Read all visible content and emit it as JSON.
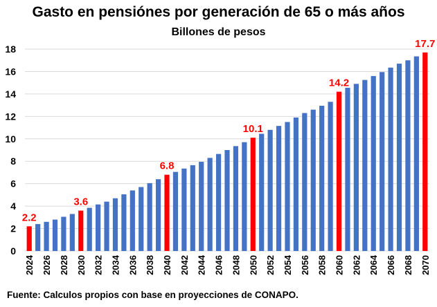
{
  "chart_data": {
    "type": "bar",
    "title": "Gasto en pensiónes por generación de 65 o más años",
    "subtitle": "Billones de pesos",
    "ylim": [
      0,
      18
    ],
    "yticks": [
      0,
      2,
      4,
      6,
      8,
      10,
      12,
      14,
      16,
      18
    ],
    "grid": true,
    "categories": [
      "2024",
      "2025",
      "2026",
      "2027",
      "2028",
      "2029",
      "2030",
      "2031",
      "2032",
      "2033",
      "2034",
      "2035",
      "2036",
      "2037",
      "2038",
      "2039",
      "2040",
      "2041",
      "2042",
      "2043",
      "2044",
      "2045",
      "2046",
      "2047",
      "2048",
      "2049",
      "2050",
      "2051",
      "2052",
      "2053",
      "2054",
      "2055",
      "2056",
      "2057",
      "2058",
      "2059",
      "2060",
      "2061",
      "2062",
      "2063",
      "2064",
      "2065",
      "2066",
      "2067",
      "2068",
      "2069",
      "2070"
    ],
    "xtick_labels": [
      "2024",
      "2026",
      "2028",
      "2030",
      "2032",
      "2034",
      "2036",
      "2038",
      "2040",
      "2042",
      "2044",
      "2046",
      "2048",
      "2050",
      "2052",
      "2054",
      "2056",
      "2058",
      "2060",
      "2062",
      "2064",
      "2066",
      "2068",
      "2070"
    ],
    "values": [
      2.2,
      2.4,
      2.6,
      2.8,
      3.05,
      3.3,
      3.6,
      3.85,
      4.15,
      4.4,
      4.7,
      5.05,
      5.4,
      5.7,
      6.05,
      6.4,
      6.8,
      7.05,
      7.35,
      7.65,
      7.95,
      8.3,
      8.65,
      9.0,
      9.35,
      9.7,
      10.1,
      10.45,
      10.8,
      11.15,
      11.5,
      11.9,
      12.3,
      12.6,
      12.95,
      13.3,
      14.2,
      14.55,
      14.9,
      15.25,
      15.6,
      15.95,
      16.35,
      16.7,
      17.0,
      17.35,
      17.7
    ],
    "highlighted": [
      {
        "category": "2024",
        "value": 2.2,
        "label": "2.2"
      },
      {
        "category": "2030",
        "value": 3.6,
        "label": "3.6"
      },
      {
        "category": "2040",
        "value": 6.8,
        "label": "6.8"
      },
      {
        "category": "2050",
        "value": 10.1,
        "label": "10.1"
      },
      {
        "category": "2060",
        "value": 14.2,
        "label": "14.2"
      },
      {
        "category": "2070",
        "value": 17.7,
        "label": "17.7"
      }
    ],
    "colors": {
      "bar": "#4472C4",
      "highlight": "#FF0000",
      "grid": "#D9D9D9",
      "label": "#FF0000"
    }
  },
  "source": "Fuente: Calculos propios con base en proyecciones de CONAPO."
}
